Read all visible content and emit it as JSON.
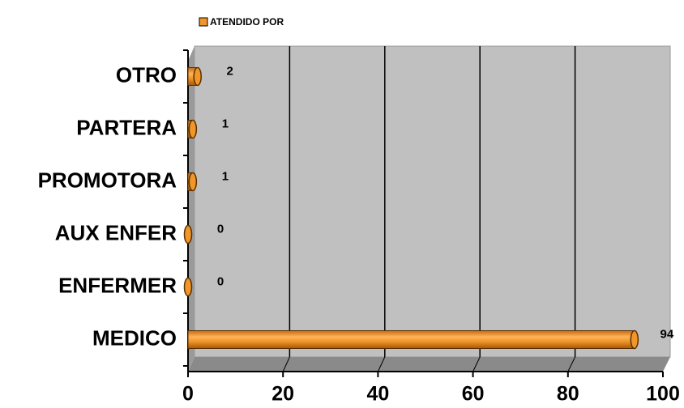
{
  "chart_data": {
    "type": "bar",
    "orientation": "horizontal",
    "categories": [
      "OTRO",
      "PARTERA",
      "PROMOTORA",
      "AUX ENFER",
      "ENFERMER",
      "MEDICO"
    ],
    "series": [
      {
        "name": "ATENDIDO POR",
        "color": "#f0962a",
        "values": [
          2,
          1,
          1,
          0,
          0,
          94
        ]
      }
    ],
    "xlim": [
      0,
      100
    ],
    "xticks": [
      0,
      20,
      40,
      60,
      80,
      100
    ],
    "grid": true,
    "legend": "top"
  }
}
